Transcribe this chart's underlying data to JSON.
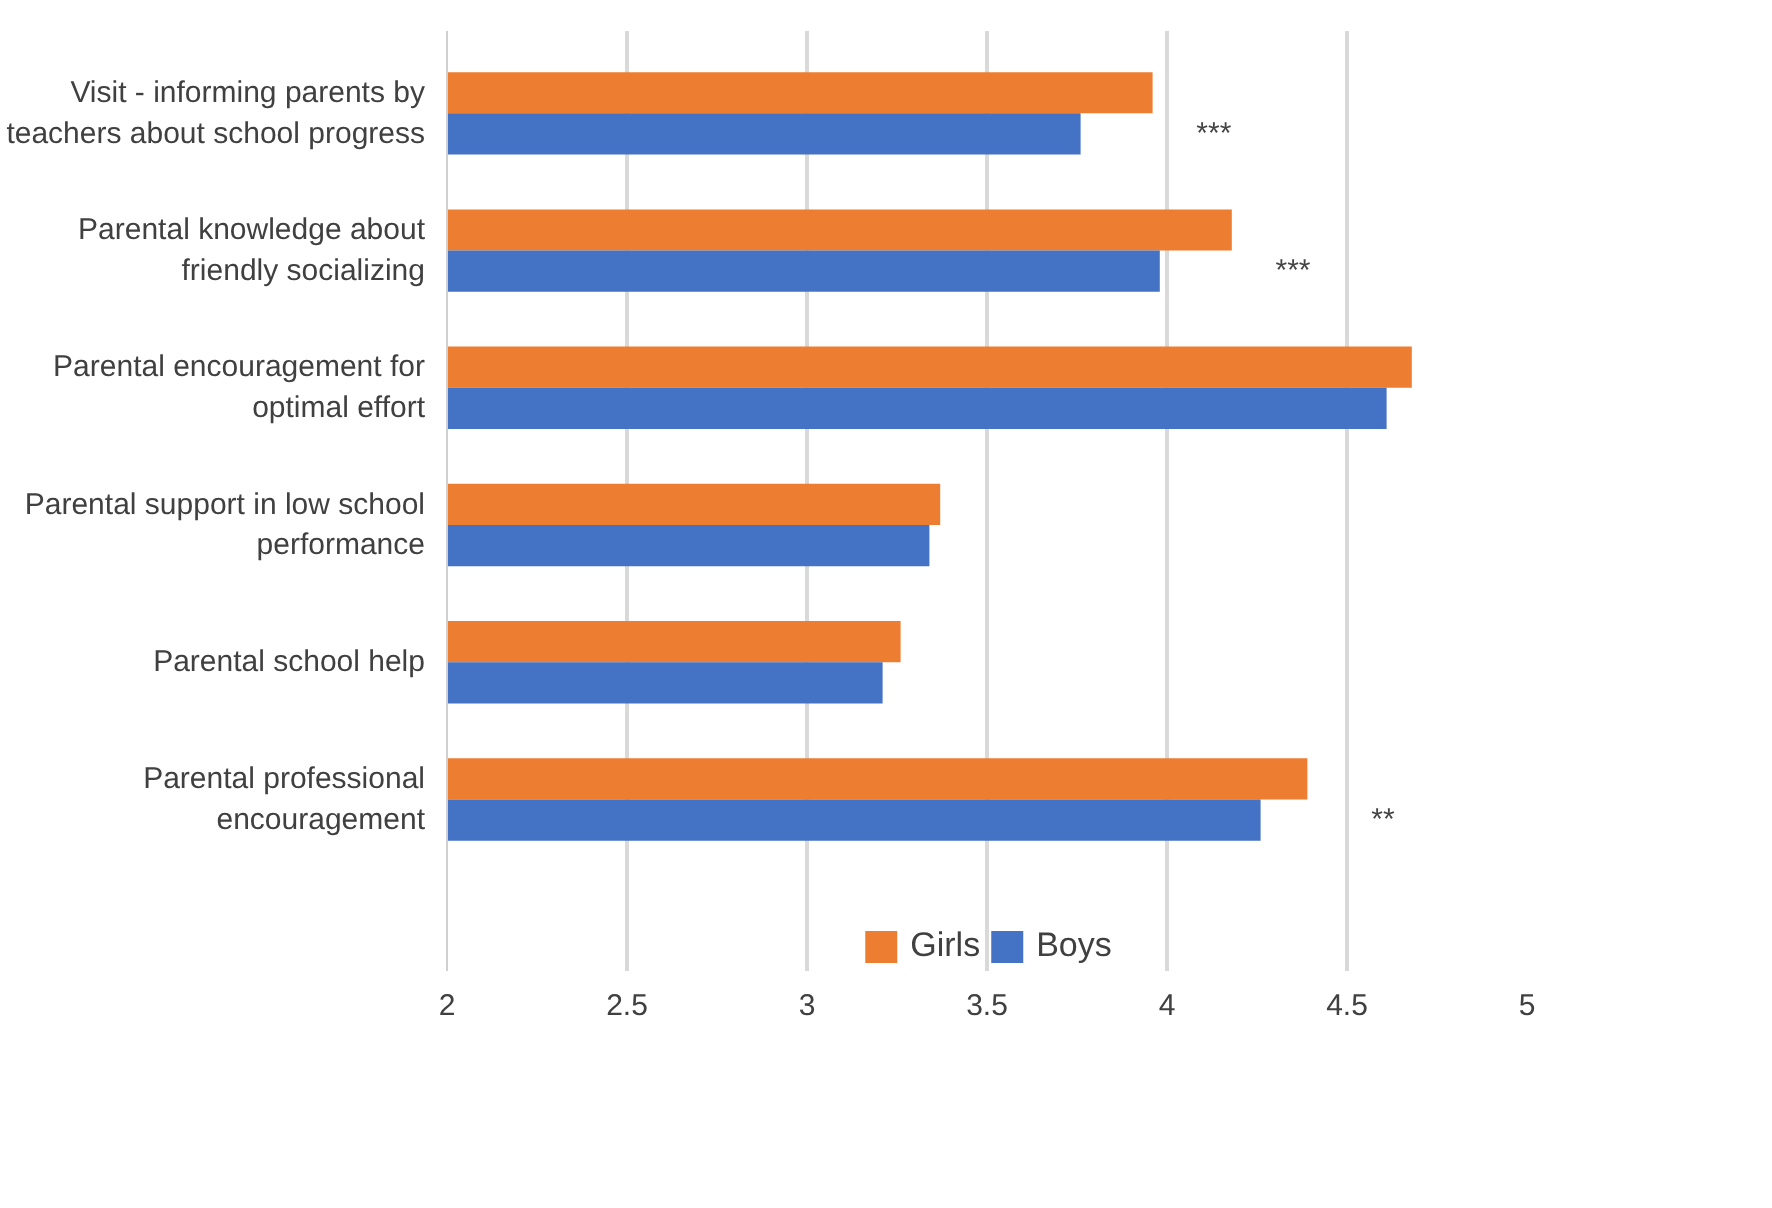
{
  "chart_data": {
    "type": "bar",
    "orientation": "horizontal",
    "categories": [
      "Visit - informing parents by teachers about school progress",
      "Parental knowledge about friendly socializing",
      "Parental encouragement for optimal effort",
      "Parental support in low school performance",
      "Parental school help",
      "Parental professional encouragement"
    ],
    "series": [
      {
        "name": "Girls",
        "color": "#ed7d31",
        "values": [
          3.96,
          4.18,
          4.68,
          3.37,
          3.26,
          4.39
        ]
      },
      {
        "name": "Boys",
        "color": "#4472c4",
        "values": [
          3.76,
          3.98,
          4.61,
          3.34,
          3.21,
          4.26
        ]
      }
    ],
    "xlim": [
      2,
      5
    ],
    "xticks": [
      2,
      2.5,
      3,
      3.5,
      4,
      4.5,
      5
    ],
    "grid": "x",
    "legend": "bottom",
    "annotations": [
      "***",
      "***",
      "**"
    ]
  }
}
